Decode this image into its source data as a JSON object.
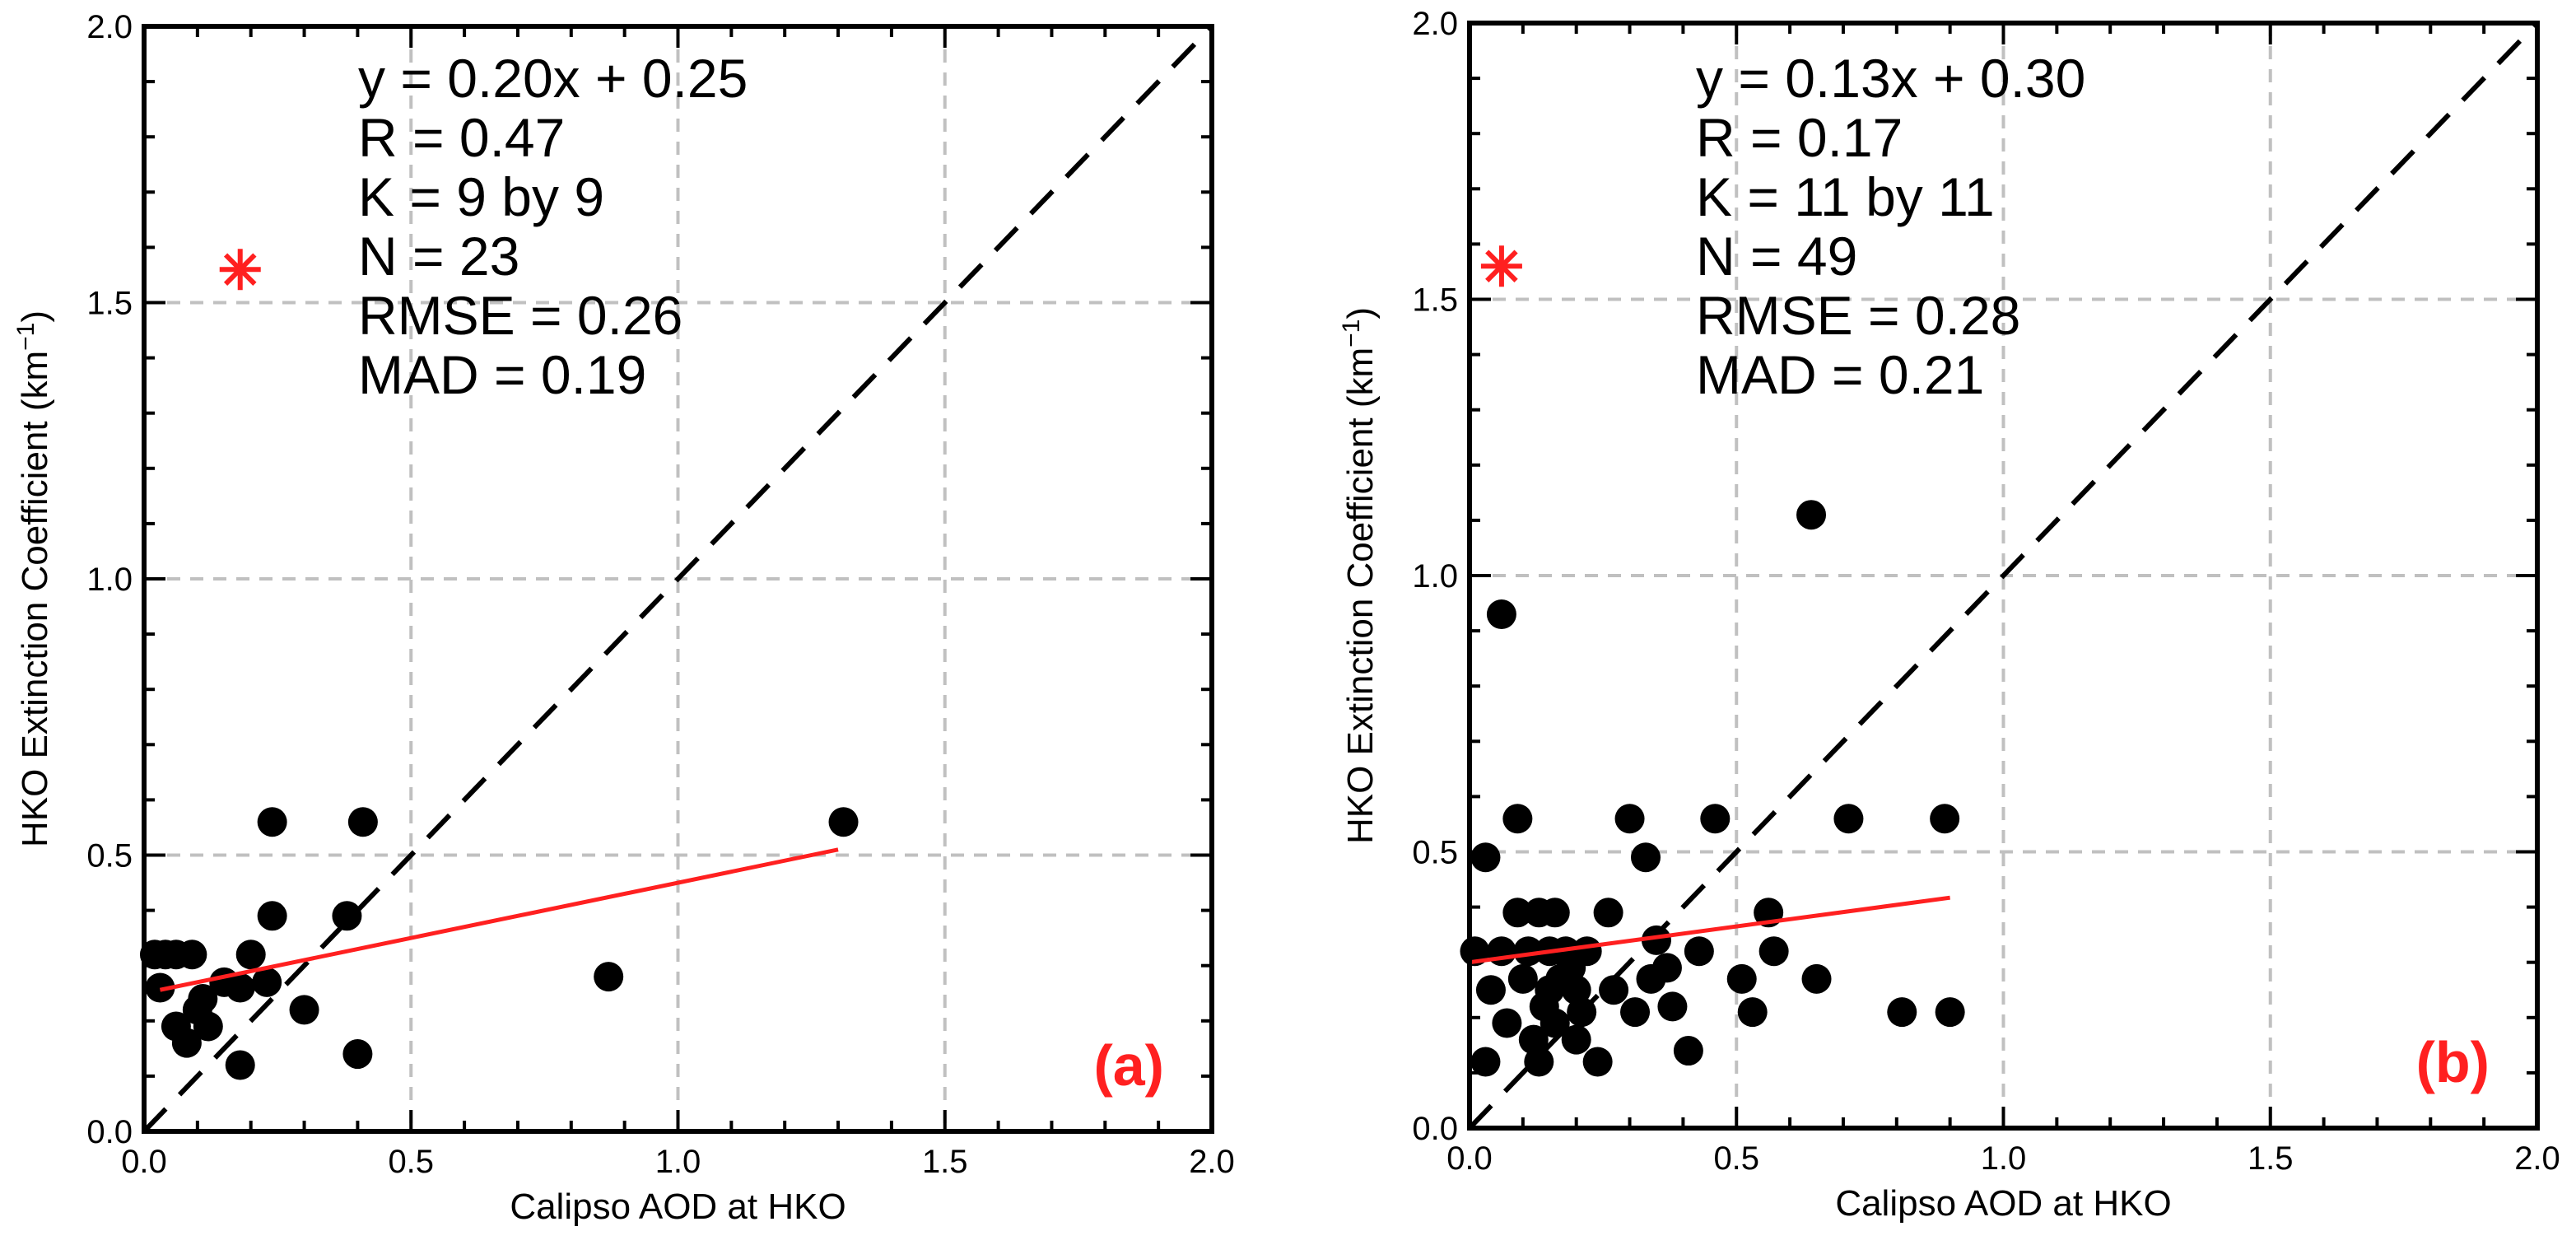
{
  "colors": {
    "accent": "#ff2020",
    "points": "#000000",
    "grid": "#c0c0c0"
  },
  "chart_data": [
    {
      "type": "scatter",
      "panel_label": "(a)",
      "xlabel": "Calipso AOD at HKO",
      "ylabel": "HKO Extinction Coefficient (km",
      "ylabel_sup": "−1",
      "ylabel_close": ")",
      "xlim": [
        0,
        2
      ],
      "ylim": [
        0,
        2
      ],
      "xticks": [
        "0.0",
        "0.5",
        "1.0",
        "1.5",
        "2.0"
      ],
      "yticks": [
        "0.0",
        "0.5",
        "1.0",
        "1.5",
        "2.0"
      ],
      "grid": true,
      "stats": [
        "y = 0.20x + 0.25",
        "R = 0.47",
        "K = 9 by 9",
        "N = 23",
        "RMSE = 0.26",
        "MAD = 0.19"
      ],
      "star": [
        0.18,
        1.56
      ],
      "fit": {
        "slope": 0.2,
        "intercept": 0.25,
        "x_range": [
          0.03,
          1.3
        ]
      },
      "points": [
        [
          0.02,
          0.32
        ],
        [
          0.04,
          0.32
        ],
        [
          0.03,
          0.26
        ],
        [
          0.06,
          0.32
        ],
        [
          0.09,
          0.32
        ],
        [
          0.06,
          0.19
        ],
        [
          0.08,
          0.16
        ],
        [
          0.1,
          0.22
        ],
        [
          0.12,
          0.19
        ],
        [
          0.18,
          0.26
        ],
        [
          0.2,
          0.32
        ],
        [
          0.23,
          0.27
        ],
        [
          0.24,
          0.39
        ],
        [
          0.24,
          0.56
        ],
        [
          0.18,
          0.12
        ],
        [
          0.3,
          0.22
        ],
        [
          0.38,
          0.39
        ],
        [
          0.41,
          0.56
        ],
        [
          0.4,
          0.14
        ],
        [
          0.87,
          0.28
        ],
        [
          1.31,
          0.56
        ],
        [
          0.15,
          0.27
        ],
        [
          0.11,
          0.24
        ]
      ]
    },
    {
      "type": "scatter",
      "panel_label": "(b)",
      "xlabel": "Calipso AOD at HKO",
      "ylabel": "HKO Extinction Coefficient (km",
      "ylabel_sup": "−1",
      "ylabel_close": ")",
      "xlim": [
        0,
        2
      ],
      "ylim": [
        0,
        2
      ],
      "xticks": [
        "0.0",
        "0.5",
        "1.0",
        "1.5",
        "2.0"
      ],
      "yticks": [
        "0.0",
        "0.5",
        "1.0",
        "1.5",
        "2.0"
      ],
      "grid": true,
      "stats": [
        "y = 0.13x + 0.30",
        "R = 0.17",
        "K = 11 by 11",
        "N = 49",
        "RMSE = 0.28",
        "MAD = 0.21"
      ],
      "star": [
        0.06,
        1.56
      ],
      "fit": {
        "slope": 0.13,
        "intercept": 0.3,
        "x_range": [
          0.0,
          0.9
        ]
      },
      "points": [
        [
          0.01,
          0.32
        ],
        [
          0.03,
          0.49
        ],
        [
          0.03,
          0.12
        ],
        [
          0.04,
          0.25
        ],
        [
          0.06,
          0.93
        ],
        [
          0.06,
          0.32
        ],
        [
          0.07,
          0.19
        ],
        [
          0.09,
          0.56
        ],
        [
          0.09,
          0.39
        ],
        [
          0.1,
          0.27
        ],
        [
          0.11,
          0.32
        ],
        [
          0.12,
          0.16
        ],
        [
          0.13,
          0.12
        ],
        [
          0.13,
          0.39
        ],
        [
          0.14,
          0.22
        ],
        [
          0.15,
          0.32
        ],
        [
          0.16,
          0.19
        ],
        [
          0.16,
          0.39
        ],
        [
          0.17,
          0.27
        ],
        [
          0.18,
          0.32
        ],
        [
          0.2,
          0.25
        ],
        [
          0.21,
          0.21
        ],
        [
          0.22,
          0.32
        ],
        [
          0.24,
          0.12
        ],
        [
          0.26,
          0.39
        ],
        [
          0.3,
          0.56
        ],
        [
          0.31,
          0.21
        ],
        [
          0.33,
          0.49
        ],
        [
          0.34,
          0.27
        ],
        [
          0.37,
          0.29
        ],
        [
          0.38,
          0.22
        ],
        [
          0.41,
          0.14
        ],
        [
          0.43,
          0.32
        ],
        [
          0.46,
          0.56
        ],
        [
          0.51,
          0.27
        ],
        [
          0.53,
          0.21
        ],
        [
          0.56,
          0.39
        ],
        [
          0.57,
          0.32
        ],
        [
          0.65,
          0.27
        ],
        [
          0.64,
          1.11
        ],
        [
          0.71,
          0.56
        ],
        [
          0.81,
          0.21
        ],
        [
          0.89,
          0.56
        ],
        [
          0.9,
          0.21
        ],
        [
          0.19,
          0.29
        ],
        [
          0.27,
          0.25
        ],
        [
          0.2,
          0.16
        ],
        [
          0.15,
          0.25
        ],
        [
          0.35,
          0.34
        ]
      ]
    }
  ]
}
